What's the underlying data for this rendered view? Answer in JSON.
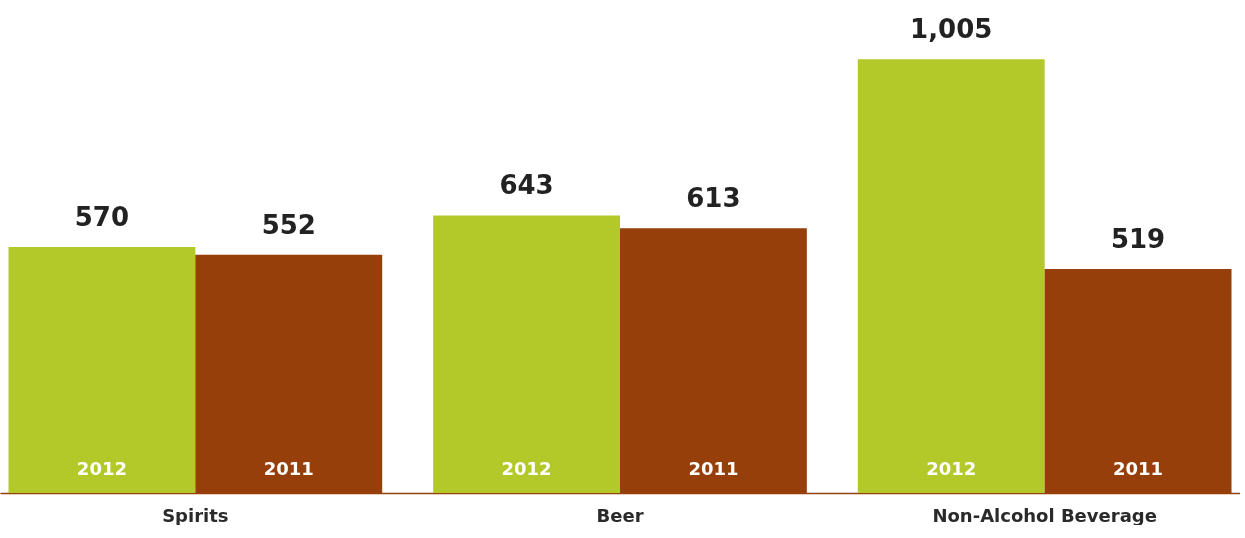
{
  "chart_data": {
    "type": "bar",
    "categories": [
      "Spirits",
      "Beer",
      "Non-Alcohol Beverage"
    ],
    "series": [
      {
        "name": "2012",
        "color": "#b3c92a",
        "values": [
          570,
          643,
          1005
        ],
        "value_labels": [
          "570",
          "643",
          "1,005"
        ]
      },
      {
        "name": "2011",
        "color": "#973f0b",
        "values": [
          552,
          613,
          519
        ],
        "value_labels": [
          "552",
          "613",
          "519"
        ]
      }
    ],
    "ylim": [
      0,
      1142
    ],
    "legend": false
  }
}
